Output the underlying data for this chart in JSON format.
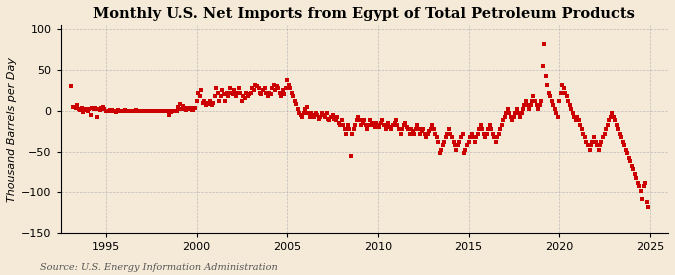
{
  "title": "Monthly U.S. Net Imports from Egypt of Total Petroleum Products",
  "ylabel": "Thousand Barrels per Day",
  "source": "Source: U.S. Energy Information Administration",
  "xlim": [
    1992.5,
    2026.0
  ],
  "ylim": [
    -150,
    105
  ],
  "yticks": [
    -150,
    -100,
    -50,
    0,
    50,
    100
  ],
  "xticks": [
    1995,
    2000,
    2005,
    2010,
    2015,
    2020,
    2025
  ],
  "background_color": "#f5ead8",
  "marker_color": "#cc0000",
  "grid_color": "#b0b0b0",
  "title_fontsize": 10.5,
  "axis_fontsize": 8,
  "source_fontsize": 7,
  "data": [
    [
      1993.08,
      30
    ],
    [
      1993.17,
      5
    ],
    [
      1993.25,
      4
    ],
    [
      1993.33,
      3
    ],
    [
      1993.42,
      7
    ],
    [
      1993.5,
      2
    ],
    [
      1993.58,
      1
    ],
    [
      1993.67,
      3
    ],
    [
      1993.75,
      -2
    ],
    [
      1993.83,
      2
    ],
    [
      1993.92,
      1
    ],
    [
      1994.0,
      0
    ],
    [
      1994.08,
      2
    ],
    [
      1994.17,
      -5
    ],
    [
      1994.25,
      3
    ],
    [
      1994.33,
      2
    ],
    [
      1994.42,
      3
    ],
    [
      1994.5,
      -8
    ],
    [
      1994.58,
      2
    ],
    [
      1994.67,
      1
    ],
    [
      1994.75,
      3
    ],
    [
      1994.83,
      4
    ],
    [
      1994.92,
      2
    ],
    [
      1995.0,
      0
    ],
    [
      1995.08,
      -1
    ],
    [
      1995.17,
      0
    ],
    [
      1995.25,
      1
    ],
    [
      1995.33,
      1
    ],
    [
      1995.42,
      0
    ],
    [
      1995.5,
      -1
    ],
    [
      1995.58,
      -2
    ],
    [
      1995.67,
      1
    ],
    [
      1995.75,
      0
    ],
    [
      1995.83,
      0
    ],
    [
      1995.92,
      -1
    ],
    [
      1996.0,
      0
    ],
    [
      1996.08,
      1
    ],
    [
      1996.17,
      0
    ],
    [
      1996.25,
      0
    ],
    [
      1996.33,
      -1
    ],
    [
      1996.42,
      0
    ],
    [
      1996.5,
      0
    ],
    [
      1996.58,
      0
    ],
    [
      1996.67,
      1
    ],
    [
      1996.75,
      0
    ],
    [
      1996.83,
      0
    ],
    [
      1996.92,
      0
    ],
    [
      1997.0,
      0
    ],
    [
      1997.08,
      0
    ],
    [
      1997.17,
      0
    ],
    [
      1997.25,
      0
    ],
    [
      1997.33,
      0
    ],
    [
      1997.42,
      0
    ],
    [
      1997.5,
      0
    ],
    [
      1997.58,
      0
    ],
    [
      1997.67,
      0
    ],
    [
      1997.75,
      0
    ],
    [
      1997.83,
      0
    ],
    [
      1997.92,
      0
    ],
    [
      1998.0,
      0
    ],
    [
      1998.08,
      0
    ],
    [
      1998.17,
      -1
    ],
    [
      1998.25,
      0
    ],
    [
      1998.33,
      -1
    ],
    [
      1998.42,
      0
    ],
    [
      1998.5,
      -5
    ],
    [
      1998.58,
      -2
    ],
    [
      1998.67,
      -1
    ],
    [
      1998.75,
      0
    ],
    [
      1998.83,
      0
    ],
    [
      1998.92,
      0
    ],
    [
      1999.0,
      5
    ],
    [
      1999.08,
      8
    ],
    [
      1999.17,
      2
    ],
    [
      1999.25,
      6
    ],
    [
      1999.33,
      2
    ],
    [
      1999.42,
      1
    ],
    [
      1999.5,
      3
    ],
    [
      1999.58,
      2
    ],
    [
      1999.67,
      3
    ],
    [
      1999.75,
      1
    ],
    [
      1999.83,
      1
    ],
    [
      1999.92,
      3
    ],
    [
      2000.0,
      12
    ],
    [
      2000.08,
      22
    ],
    [
      2000.17,
      18
    ],
    [
      2000.25,
      25
    ],
    [
      2000.33,
      10
    ],
    [
      2000.42,
      12
    ],
    [
      2000.5,
      7
    ],
    [
      2000.58,
      10
    ],
    [
      2000.67,
      8
    ],
    [
      2000.75,
      12
    ],
    [
      2000.83,
      7
    ],
    [
      2000.92,
      10
    ],
    [
      2001.0,
      18
    ],
    [
      2001.08,
      28
    ],
    [
      2001.17,
      22
    ],
    [
      2001.25,
      12
    ],
    [
      2001.33,
      18
    ],
    [
      2001.42,
      25
    ],
    [
      2001.5,
      20
    ],
    [
      2001.58,
      12
    ],
    [
      2001.67,
      22
    ],
    [
      2001.75,
      18
    ],
    [
      2001.83,
      28
    ],
    [
      2001.92,
      22
    ],
    [
      2002.0,
      20
    ],
    [
      2002.08,
      25
    ],
    [
      2002.17,
      18
    ],
    [
      2002.25,
      22
    ],
    [
      2002.33,
      28
    ],
    [
      2002.42,
      22
    ],
    [
      2002.5,
      12
    ],
    [
      2002.58,
      18
    ],
    [
      2002.67,
      15
    ],
    [
      2002.75,
      22
    ],
    [
      2002.83,
      18
    ],
    [
      2002.92,
      20
    ],
    [
      2003.0,
      22
    ],
    [
      2003.08,
      28
    ],
    [
      2003.17,
      25
    ],
    [
      2003.25,
      32
    ],
    [
      2003.33,
      30
    ],
    [
      2003.42,
      28
    ],
    [
      2003.5,
      22
    ],
    [
      2003.58,
      20
    ],
    [
      2003.67,
      25
    ],
    [
      2003.75,
      28
    ],
    [
      2003.83,
      22
    ],
    [
      2003.92,
      18
    ],
    [
      2004.0,
      22
    ],
    [
      2004.08,
      20
    ],
    [
      2004.17,
      28
    ],
    [
      2004.25,
      32
    ],
    [
      2004.33,
      25
    ],
    [
      2004.42,
      30
    ],
    [
      2004.5,
      28
    ],
    [
      2004.58,
      22
    ],
    [
      2004.67,
      18
    ],
    [
      2004.75,
      25
    ],
    [
      2004.83,
      20
    ],
    [
      2004.92,
      28
    ],
    [
      2005.0,
      38
    ],
    [
      2005.08,
      32
    ],
    [
      2005.17,
      28
    ],
    [
      2005.25,
      22
    ],
    [
      2005.33,
      18
    ],
    [
      2005.42,
      12
    ],
    [
      2005.5,
      8
    ],
    [
      2005.58,
      2
    ],
    [
      2005.67,
      -3
    ],
    [
      2005.75,
      -5
    ],
    [
      2005.83,
      -8
    ],
    [
      2005.92,
      -3
    ],
    [
      2006.0,
      2
    ],
    [
      2006.08,
      5
    ],
    [
      2006.17,
      -3
    ],
    [
      2006.25,
      -8
    ],
    [
      2006.33,
      -3
    ],
    [
      2006.42,
      -5
    ],
    [
      2006.5,
      -8
    ],
    [
      2006.58,
      -3
    ],
    [
      2006.67,
      -5
    ],
    [
      2006.75,
      -10
    ],
    [
      2006.83,
      -8
    ],
    [
      2006.92,
      -3
    ],
    [
      2007.0,
      -5
    ],
    [
      2007.08,
      -8
    ],
    [
      2007.17,
      -3
    ],
    [
      2007.25,
      -10
    ],
    [
      2007.33,
      -12
    ],
    [
      2007.42,
      -8
    ],
    [
      2007.5,
      -5
    ],
    [
      2007.58,
      -10
    ],
    [
      2007.67,
      -12
    ],
    [
      2007.75,
      -8
    ],
    [
      2007.83,
      -15
    ],
    [
      2007.92,
      -18
    ],
    [
      2008.0,
      -12
    ],
    [
      2008.08,
      -18
    ],
    [
      2008.17,
      -22
    ],
    [
      2008.25,
      -28
    ],
    [
      2008.33,
      -18
    ],
    [
      2008.42,
      -22
    ],
    [
      2008.5,
      -55
    ],
    [
      2008.58,
      -28
    ],
    [
      2008.67,
      -22
    ],
    [
      2008.75,
      -18
    ],
    [
      2008.83,
      -12
    ],
    [
      2008.92,
      -8
    ],
    [
      2009.0,
      -12
    ],
    [
      2009.08,
      -18
    ],
    [
      2009.17,
      -15
    ],
    [
      2009.25,
      -12
    ],
    [
      2009.33,
      -18
    ],
    [
      2009.42,
      -22
    ],
    [
      2009.5,
      -18
    ],
    [
      2009.58,
      -12
    ],
    [
      2009.67,
      -15
    ],
    [
      2009.75,
      -18
    ],
    [
      2009.83,
      -20
    ],
    [
      2009.92,
      -15
    ],
    [
      2010.0,
      -18
    ],
    [
      2010.08,
      -20
    ],
    [
      2010.17,
      -15
    ],
    [
      2010.25,
      -12
    ],
    [
      2010.33,
      -18
    ],
    [
      2010.42,
      -22
    ],
    [
      2010.5,
      -18
    ],
    [
      2010.58,
      -15
    ],
    [
      2010.67,
      -20
    ],
    [
      2010.75,
      -22
    ],
    [
      2010.83,
      -18
    ],
    [
      2010.92,
      -15
    ],
    [
      2011.0,
      -12
    ],
    [
      2011.08,
      -18
    ],
    [
      2011.17,
      -22
    ],
    [
      2011.25,
      -28
    ],
    [
      2011.33,
      -22
    ],
    [
      2011.42,
      -18
    ],
    [
      2011.5,
      -15
    ],
    [
      2011.58,
      -20
    ],
    [
      2011.67,
      -22
    ],
    [
      2011.75,
      -28
    ],
    [
      2011.83,
      -22
    ],
    [
      2011.92,
      -25
    ],
    [
      2012.0,
      -28
    ],
    [
      2012.08,
      -22
    ],
    [
      2012.17,
      -18
    ],
    [
      2012.25,
      -22
    ],
    [
      2012.33,
      -28
    ],
    [
      2012.42,
      -25
    ],
    [
      2012.5,
      -22
    ],
    [
      2012.58,
      -28
    ],
    [
      2012.67,
      -32
    ],
    [
      2012.75,
      -28
    ],
    [
      2012.83,
      -25
    ],
    [
      2012.92,
      -22
    ],
    [
      2013.0,
      -18
    ],
    [
      2013.08,
      -22
    ],
    [
      2013.17,
      -28
    ],
    [
      2013.25,
      -32
    ],
    [
      2013.33,
      -38
    ],
    [
      2013.42,
      -52
    ],
    [
      2013.5,
      -48
    ],
    [
      2013.58,
      -42
    ],
    [
      2013.67,
      -38
    ],
    [
      2013.75,
      -32
    ],
    [
      2013.83,
      -28
    ],
    [
      2013.92,
      -22
    ],
    [
      2014.0,
      -28
    ],
    [
      2014.08,
      -32
    ],
    [
      2014.17,
      -38
    ],
    [
      2014.25,
      -42
    ],
    [
      2014.33,
      -48
    ],
    [
      2014.42,
      -42
    ],
    [
      2014.5,
      -38
    ],
    [
      2014.58,
      -32
    ],
    [
      2014.67,
      -28
    ],
    [
      2014.75,
      -52
    ],
    [
      2014.83,
      -48
    ],
    [
      2014.92,
      -42
    ],
    [
      2015.0,
      -38
    ],
    [
      2015.08,
      -32
    ],
    [
      2015.17,
      -28
    ],
    [
      2015.25,
      -32
    ],
    [
      2015.33,
      -38
    ],
    [
      2015.42,
      -32
    ],
    [
      2015.5,
      -28
    ],
    [
      2015.58,
      -22
    ],
    [
      2015.67,
      -18
    ],
    [
      2015.75,
      -22
    ],
    [
      2015.83,
      -28
    ],
    [
      2015.92,
      -32
    ],
    [
      2016.0,
      -28
    ],
    [
      2016.08,
      -22
    ],
    [
      2016.17,
      -18
    ],
    [
      2016.25,
      -22
    ],
    [
      2016.33,
      -28
    ],
    [
      2016.42,
      -32
    ],
    [
      2016.5,
      -38
    ],
    [
      2016.58,
      -32
    ],
    [
      2016.67,
      -28
    ],
    [
      2016.75,
      -22
    ],
    [
      2016.83,
      -18
    ],
    [
      2016.92,
      -12
    ],
    [
      2017.0,
      -8
    ],
    [
      2017.08,
      -3
    ],
    [
      2017.17,
      2
    ],
    [
      2017.25,
      -3
    ],
    [
      2017.33,
      -8
    ],
    [
      2017.42,
      -12
    ],
    [
      2017.5,
      -8
    ],
    [
      2017.58,
      -3
    ],
    [
      2017.67,
      2
    ],
    [
      2017.75,
      -3
    ],
    [
      2017.83,
      -8
    ],
    [
      2017.92,
      -3
    ],
    [
      2018.0,
      2
    ],
    [
      2018.08,
      7
    ],
    [
      2018.17,
      12
    ],
    [
      2018.25,
      7
    ],
    [
      2018.33,
      2
    ],
    [
      2018.42,
      7
    ],
    [
      2018.5,
      12
    ],
    [
      2018.58,
      18
    ],
    [
      2018.67,
      12
    ],
    [
      2018.75,
      7
    ],
    [
      2018.83,
      2
    ],
    [
      2018.92,
      7
    ],
    [
      2019.0,
      12
    ],
    [
      2019.08,
      55
    ],
    [
      2019.17,
      82
    ],
    [
      2019.25,
      42
    ],
    [
      2019.33,
      32
    ],
    [
      2019.42,
      22
    ],
    [
      2019.5,
      18
    ],
    [
      2019.58,
      12
    ],
    [
      2019.67,
      7
    ],
    [
      2019.75,
      2
    ],
    [
      2019.83,
      -3
    ],
    [
      2019.92,
      -8
    ],
    [
      2020.0,
      12
    ],
    [
      2020.08,
      22
    ],
    [
      2020.17,
      32
    ],
    [
      2020.25,
      28
    ],
    [
      2020.33,
      22
    ],
    [
      2020.42,
      18
    ],
    [
      2020.5,
      12
    ],
    [
      2020.58,
      7
    ],
    [
      2020.67,
      2
    ],
    [
      2020.75,
      -3
    ],
    [
      2020.83,
      -8
    ],
    [
      2020.92,
      -12
    ],
    [
      2021.0,
      -8
    ],
    [
      2021.08,
      -12
    ],
    [
      2021.17,
      -18
    ],
    [
      2021.25,
      -22
    ],
    [
      2021.33,
      -28
    ],
    [
      2021.42,
      -32
    ],
    [
      2021.5,
      -38
    ],
    [
      2021.58,
      -42
    ],
    [
      2021.67,
      -48
    ],
    [
      2021.75,
      -42
    ],
    [
      2021.83,
      -38
    ],
    [
      2021.92,
      -32
    ],
    [
      2022.0,
      -38
    ],
    [
      2022.08,
      -42
    ],
    [
      2022.17,
      -48
    ],
    [
      2022.25,
      -42
    ],
    [
      2022.33,
      -38
    ],
    [
      2022.42,
      -32
    ],
    [
      2022.5,
      -28
    ],
    [
      2022.58,
      -22
    ],
    [
      2022.67,
      -18
    ],
    [
      2022.75,
      -12
    ],
    [
      2022.83,
      -8
    ],
    [
      2022.92,
      -3
    ],
    [
      2023.0,
      -8
    ],
    [
      2023.08,
      -12
    ],
    [
      2023.17,
      -18
    ],
    [
      2023.25,
      -22
    ],
    [
      2023.33,
      -28
    ],
    [
      2023.42,
      -32
    ],
    [
      2023.5,
      -38
    ],
    [
      2023.58,
      -42
    ],
    [
      2023.67,
      -48
    ],
    [
      2023.75,
      -52
    ],
    [
      2023.83,
      -58
    ],
    [
      2023.92,
      -62
    ],
    [
      2024.0,
      -68
    ],
    [
      2024.08,
      -72
    ],
    [
      2024.17,
      -78
    ],
    [
      2024.25,
      -82
    ],
    [
      2024.33,
      -88
    ],
    [
      2024.42,
      -92
    ],
    [
      2024.5,
      -98
    ],
    [
      2024.58,
      -108
    ],
    [
      2024.67,
      -92
    ],
    [
      2024.75,
      -88
    ],
    [
      2024.83,
      -112
    ],
    [
      2024.92,
      -118
    ]
  ]
}
